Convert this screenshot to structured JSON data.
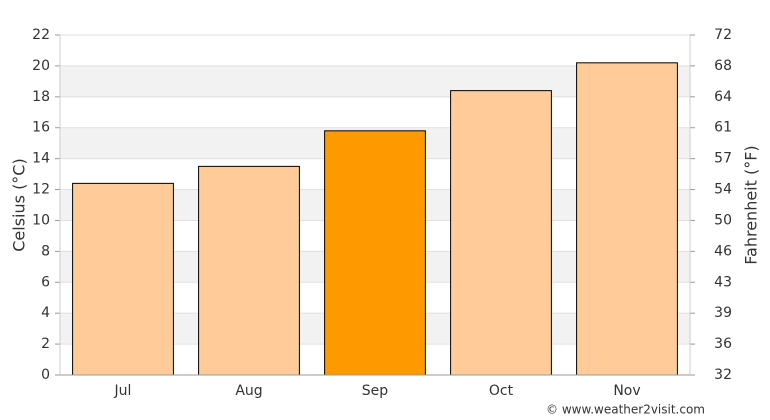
{
  "chart_data": {
    "type": "bar",
    "categories": [
      "Jul",
      "Aug",
      "Sep",
      "Oct",
      "Nov"
    ],
    "values": [
      12.4,
      13.5,
      15.8,
      18.4,
      20.2
    ],
    "colors": [
      "#ffcc99",
      "#ffcc99",
      "#ff9900",
      "#ffcc99",
      "#ffcc99"
    ],
    "ylabel": "Celsius (°C)",
    "y2label": "Fahrenheit (°F)",
    "ylim": [
      0,
      22
    ],
    "yticks": [
      0,
      2,
      4,
      6,
      8,
      10,
      12,
      14,
      16,
      18,
      20,
      22
    ],
    "y2lim": [
      32,
      71.6
    ],
    "y2ticks": [
      32,
      {
        "value": 35.6,
        "label": "36"
      },
      {
        "value": 39.2,
        "label": "39"
      },
      {
        "value": 42.8,
        "label": "43"
      },
      {
        "value": 46.4,
        "label": "46"
      },
      50,
      {
        "value": 53.6,
        "label": "54"
      },
      {
        "value": 57.2,
        "label": "57"
      },
      {
        "value": 60.8,
        "label": "61"
      },
      {
        "value": 64.4,
        "label": "64"
      },
      68,
      {
        "value": 71.6,
        "label": "72"
      }
    ],
    "stripes": true,
    "grid": true,
    "source": "© www.weather2visit.com"
  }
}
